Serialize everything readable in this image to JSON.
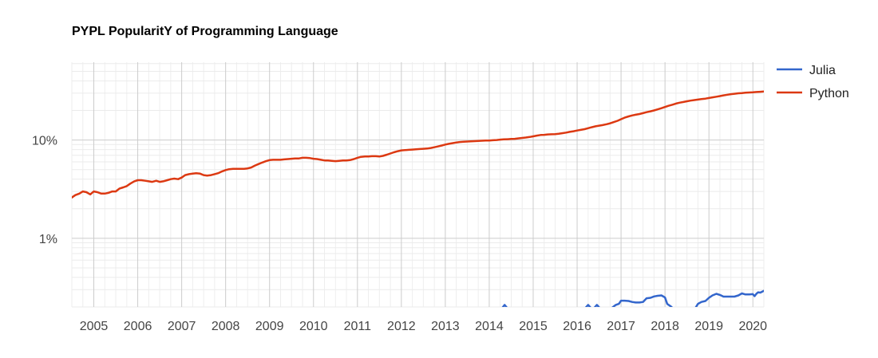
{
  "chart_data": {
    "type": "line",
    "title": "PYPL PopularitY of Programming Language",
    "xlabel": "",
    "ylabel": "",
    "yscale": "log",
    "xlim": [
      2004.5,
      2020.25
    ],
    "ylim": [
      0.2,
      62
    ],
    "grid": true,
    "legend": "right-top",
    "x_tick_labels": [
      "2005",
      "2006",
      "2007",
      "2008",
      "2009",
      "2010",
      "2011",
      "2012",
      "2013",
      "2014",
      "2015",
      "2016",
      "2017",
      "2018",
      "2019",
      "2020"
    ],
    "y_tick_labels": [
      {
        "value": 1,
        "label": "1%"
      },
      {
        "value": 10,
        "label": "10%"
      }
    ],
    "series": [
      {
        "name": "Julia",
        "color": "#3366cc",
        "points": [
          [
            2014.3,
            0.197
          ],
          [
            2014.35,
            0.21
          ],
          [
            2014.4,
            0.197
          ],
          null,
          [
            2016.2,
            0.198
          ],
          [
            2016.25,
            0.21
          ],
          [
            2016.3,
            0.198
          ],
          null,
          [
            2016.4,
            0.198
          ],
          [
            2016.45,
            0.21
          ],
          [
            2016.5,
            0.198
          ],
          null,
          [
            2016.8,
            0.197
          ],
          [
            2016.88,
            0.21
          ],
          [
            2016.95,
            0.215
          ],
          [
            2017.0,
            0.232
          ],
          [
            2017.08,
            0.232
          ],
          [
            2017.17,
            0.23
          ],
          [
            2017.25,
            0.225
          ],
          [
            2017.33,
            0.222
          ],
          [
            2017.42,
            0.222
          ],
          [
            2017.5,
            0.225
          ],
          [
            2017.58,
            0.245
          ],
          [
            2017.67,
            0.248
          ],
          [
            2017.75,
            0.256
          ],
          [
            2017.83,
            0.26
          ],
          [
            2017.92,
            0.262
          ],
          [
            2018.0,
            0.25
          ],
          [
            2018.05,
            0.215
          ],
          [
            2018.15,
            0.2
          ],
          null,
          [
            2018.7,
            0.198
          ],
          [
            2018.75,
            0.215
          ],
          [
            2018.83,
            0.225
          ],
          [
            2018.92,
            0.23
          ],
          [
            2019.0,
            0.248
          ],
          [
            2019.08,
            0.262
          ],
          [
            2019.17,
            0.272
          ],
          [
            2019.25,
            0.265
          ],
          [
            2019.33,
            0.255
          ],
          [
            2019.42,
            0.255
          ],
          [
            2019.5,
            0.255
          ],
          [
            2019.58,
            0.255
          ],
          [
            2019.67,
            0.262
          ],
          [
            2019.75,
            0.275
          ],
          [
            2019.83,
            0.268
          ],
          [
            2019.92,
            0.268
          ],
          [
            2020.0,
            0.27
          ],
          [
            2020.04,
            0.258
          ],
          [
            2020.08,
            0.272
          ],
          [
            2020.12,
            0.282
          ],
          [
            2020.17,
            0.28
          ],
          [
            2020.25,
            0.292
          ]
        ]
      },
      {
        "name": "Python",
        "color": "#dc3912",
        "points": [
          [
            2004.5,
            2.6
          ],
          [
            2004.58,
            2.75
          ],
          [
            2004.67,
            2.85
          ],
          [
            2004.75,
            3.0
          ],
          [
            2004.83,
            2.95
          ],
          [
            2004.92,
            2.8
          ],
          [
            2005.0,
            3.0
          ],
          [
            2005.08,
            2.95
          ],
          [
            2005.17,
            2.85
          ],
          [
            2005.25,
            2.85
          ],
          [
            2005.33,
            2.9
          ],
          [
            2005.42,
            3.0
          ],
          [
            2005.5,
            3.0
          ],
          [
            2005.58,
            3.2
          ],
          [
            2005.67,
            3.3
          ],
          [
            2005.75,
            3.4
          ],
          [
            2005.83,
            3.6
          ],
          [
            2005.92,
            3.8
          ],
          [
            2006.0,
            3.9
          ],
          [
            2006.08,
            3.9
          ],
          [
            2006.17,
            3.85
          ],
          [
            2006.25,
            3.8
          ],
          [
            2006.33,
            3.75
          ],
          [
            2006.42,
            3.85
          ],
          [
            2006.5,
            3.75
          ],
          [
            2006.58,
            3.8
          ],
          [
            2006.67,
            3.9
          ],
          [
            2006.75,
            4.0
          ],
          [
            2006.83,
            4.05
          ],
          [
            2006.92,
            4.0
          ],
          [
            2007.0,
            4.15
          ],
          [
            2007.08,
            4.4
          ],
          [
            2007.17,
            4.5
          ],
          [
            2007.25,
            4.55
          ],
          [
            2007.33,
            4.6
          ],
          [
            2007.42,
            4.55
          ],
          [
            2007.5,
            4.4
          ],
          [
            2007.58,
            4.35
          ],
          [
            2007.67,
            4.4
          ],
          [
            2007.75,
            4.5
          ],
          [
            2007.83,
            4.6
          ],
          [
            2007.92,
            4.8
          ],
          [
            2008.0,
            4.95
          ],
          [
            2008.08,
            5.05
          ],
          [
            2008.17,
            5.1
          ],
          [
            2008.25,
            5.1
          ],
          [
            2008.33,
            5.1
          ],
          [
            2008.42,
            5.1
          ],
          [
            2008.5,
            5.15
          ],
          [
            2008.58,
            5.25
          ],
          [
            2008.67,
            5.5
          ],
          [
            2008.75,
            5.7
          ],
          [
            2008.83,
            5.9
          ],
          [
            2008.92,
            6.1
          ],
          [
            2009.0,
            6.25
          ],
          [
            2009.08,
            6.3
          ],
          [
            2009.17,
            6.3
          ],
          [
            2009.25,
            6.3
          ],
          [
            2009.33,
            6.35
          ],
          [
            2009.42,
            6.4
          ],
          [
            2009.5,
            6.45
          ],
          [
            2009.58,
            6.5
          ],
          [
            2009.67,
            6.5
          ],
          [
            2009.75,
            6.6
          ],
          [
            2009.83,
            6.6
          ],
          [
            2009.92,
            6.55
          ],
          [
            2010.0,
            6.45
          ],
          [
            2010.08,
            6.4
          ],
          [
            2010.17,
            6.3
          ],
          [
            2010.25,
            6.2
          ],
          [
            2010.33,
            6.2
          ],
          [
            2010.42,
            6.15
          ],
          [
            2010.5,
            6.1
          ],
          [
            2010.58,
            6.15
          ],
          [
            2010.67,
            6.2
          ],
          [
            2010.75,
            6.2
          ],
          [
            2010.83,
            6.25
          ],
          [
            2010.92,
            6.4
          ],
          [
            2011.0,
            6.6
          ],
          [
            2011.08,
            6.75
          ],
          [
            2011.17,
            6.8
          ],
          [
            2011.25,
            6.8
          ],
          [
            2011.33,
            6.85
          ],
          [
            2011.42,
            6.85
          ],
          [
            2011.5,
            6.8
          ],
          [
            2011.58,
            6.9
          ],
          [
            2011.67,
            7.1
          ],
          [
            2011.75,
            7.3
          ],
          [
            2011.83,
            7.5
          ],
          [
            2011.92,
            7.7
          ],
          [
            2012.0,
            7.85
          ],
          [
            2012.08,
            7.9
          ],
          [
            2012.17,
            7.95
          ],
          [
            2012.25,
            8.0
          ],
          [
            2012.33,
            8.05
          ],
          [
            2012.42,
            8.1
          ],
          [
            2012.5,
            8.15
          ],
          [
            2012.58,
            8.2
          ],
          [
            2012.67,
            8.3
          ],
          [
            2012.75,
            8.45
          ],
          [
            2012.83,
            8.6
          ],
          [
            2012.92,
            8.8
          ],
          [
            2013.0,
            9.0
          ],
          [
            2013.08,
            9.15
          ],
          [
            2013.17,
            9.3
          ],
          [
            2013.25,
            9.45
          ],
          [
            2013.33,
            9.55
          ],
          [
            2013.42,
            9.6
          ],
          [
            2013.5,
            9.65
          ],
          [
            2013.58,
            9.7
          ],
          [
            2013.67,
            9.75
          ],
          [
            2013.75,
            9.8
          ],
          [
            2013.83,
            9.85
          ],
          [
            2013.92,
            9.9
          ],
          [
            2014.0,
            9.9
          ],
          [
            2014.08,
            9.95
          ],
          [
            2014.17,
            10.0
          ],
          [
            2014.25,
            10.1
          ],
          [
            2014.33,
            10.15
          ],
          [
            2014.42,
            10.2
          ],
          [
            2014.5,
            10.25
          ],
          [
            2014.58,
            10.3
          ],
          [
            2014.67,
            10.4
          ],
          [
            2014.75,
            10.5
          ],
          [
            2014.83,
            10.6
          ],
          [
            2014.92,
            10.75
          ],
          [
            2015.0,
            10.9
          ],
          [
            2015.08,
            11.1
          ],
          [
            2015.17,
            11.25
          ],
          [
            2015.25,
            11.3
          ],
          [
            2015.33,
            11.4
          ],
          [
            2015.42,
            11.45
          ],
          [
            2015.5,
            11.5
          ],
          [
            2015.58,
            11.6
          ],
          [
            2015.67,
            11.75
          ],
          [
            2015.75,
            11.9
          ],
          [
            2015.83,
            12.1
          ],
          [
            2015.92,
            12.3
          ],
          [
            2016.0,
            12.5
          ],
          [
            2016.08,
            12.7
          ],
          [
            2016.17,
            12.9
          ],
          [
            2016.25,
            13.2
          ],
          [
            2016.33,
            13.5
          ],
          [
            2016.42,
            13.8
          ],
          [
            2016.5,
            14.0
          ],
          [
            2016.58,
            14.2
          ],
          [
            2016.67,
            14.5
          ],
          [
            2016.75,
            14.8
          ],
          [
            2016.83,
            15.2
          ],
          [
            2016.92,
            15.7
          ],
          [
            2017.0,
            16.3
          ],
          [
            2017.08,
            16.9
          ],
          [
            2017.17,
            17.4
          ],
          [
            2017.25,
            17.8
          ],
          [
            2017.33,
            18.1
          ],
          [
            2017.42,
            18.4
          ],
          [
            2017.5,
            18.8
          ],
          [
            2017.58,
            19.2
          ],
          [
            2017.67,
            19.6
          ],
          [
            2017.75,
            20.0
          ],
          [
            2017.83,
            20.5
          ],
          [
            2017.92,
            21.1
          ],
          [
            2018.0,
            21.7
          ],
          [
            2018.08,
            22.3
          ],
          [
            2018.17,
            22.9
          ],
          [
            2018.25,
            23.5
          ],
          [
            2018.33,
            24.0
          ],
          [
            2018.42,
            24.4
          ],
          [
            2018.5,
            24.8
          ],
          [
            2018.58,
            25.2
          ],
          [
            2018.67,
            25.5
          ],
          [
            2018.75,
            25.8
          ],
          [
            2018.83,
            26.1
          ],
          [
            2018.92,
            26.4
          ],
          [
            2019.0,
            26.8
          ],
          [
            2019.08,
            27.2
          ],
          [
            2019.17,
            27.6
          ],
          [
            2019.25,
            28.0
          ],
          [
            2019.33,
            28.5
          ],
          [
            2019.42,
            28.9
          ],
          [
            2019.5,
            29.3
          ],
          [
            2019.58,
            29.6
          ],
          [
            2019.67,
            29.9
          ],
          [
            2019.75,
            30.1
          ],
          [
            2019.83,
            30.3
          ],
          [
            2019.92,
            30.5
          ],
          [
            2020.0,
            30.6
          ],
          [
            2020.08,
            30.8
          ],
          [
            2020.17,
            31.0
          ],
          [
            2020.25,
            31.2
          ]
        ]
      }
    ]
  }
}
